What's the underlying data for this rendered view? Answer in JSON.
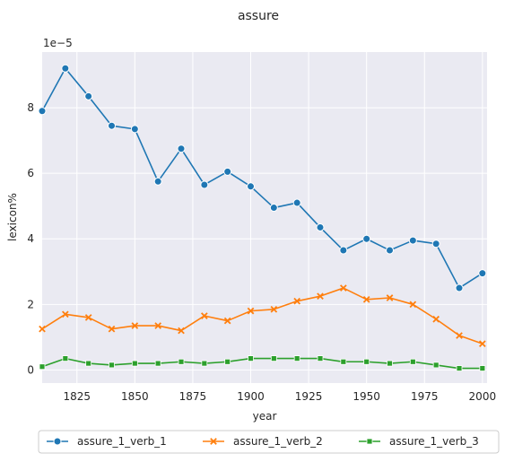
{
  "chart_data": {
    "type": "line",
    "title": "assure",
    "xlabel": "year",
    "ylabel": "lexicon%",
    "y_scale_label": "1e−5",
    "xlim": [
      1810,
      2002
    ],
    "ylim": [
      -0.4,
      9.7
    ],
    "x_ticks": [
      1825,
      1850,
      1875,
      1900,
      1925,
      1950,
      1975,
      2000
    ],
    "y_ticks": [
      0,
      2,
      4,
      6,
      8
    ],
    "grid": true,
    "legend_position": "bottom-center",
    "x": [
      1810,
      1820,
      1830,
      1840,
      1850,
      1860,
      1870,
      1880,
      1890,
      1900,
      1910,
      1920,
      1930,
      1940,
      1950,
      1960,
      1970,
      1980,
      1990,
      2000
    ],
    "series": [
      {
        "name": "assure_1_verb_1",
        "color": "#1f77b4",
        "marker": "circle",
        "values": [
          7.9,
          9.2,
          8.35,
          7.45,
          7.35,
          5.75,
          6.75,
          5.65,
          6.05,
          5.6,
          4.95,
          5.1,
          4.35,
          3.65,
          4.0,
          3.65,
          3.95,
          3.85,
          2.5,
          2.95
        ]
      },
      {
        "name": "assure_1_verb_2",
        "color": "#ff7f0e",
        "marker": "x",
        "values": [
          1.25,
          1.7,
          1.6,
          1.25,
          1.35,
          1.35,
          1.2,
          1.65,
          1.5,
          1.8,
          1.85,
          2.1,
          2.25,
          2.5,
          2.15,
          2.2,
          2.0,
          1.55,
          1.05,
          0.8
        ]
      },
      {
        "name": "assure_1_verb_3",
        "color": "#2ca02c",
        "marker": "square",
        "values": [
          0.1,
          0.35,
          0.2,
          0.15,
          0.2,
          0.2,
          0.25,
          0.2,
          0.25,
          0.35,
          0.35,
          0.35,
          0.35,
          0.25,
          0.25,
          0.2,
          0.25,
          0.15,
          0.05,
          0.05
        ]
      }
    ]
  }
}
